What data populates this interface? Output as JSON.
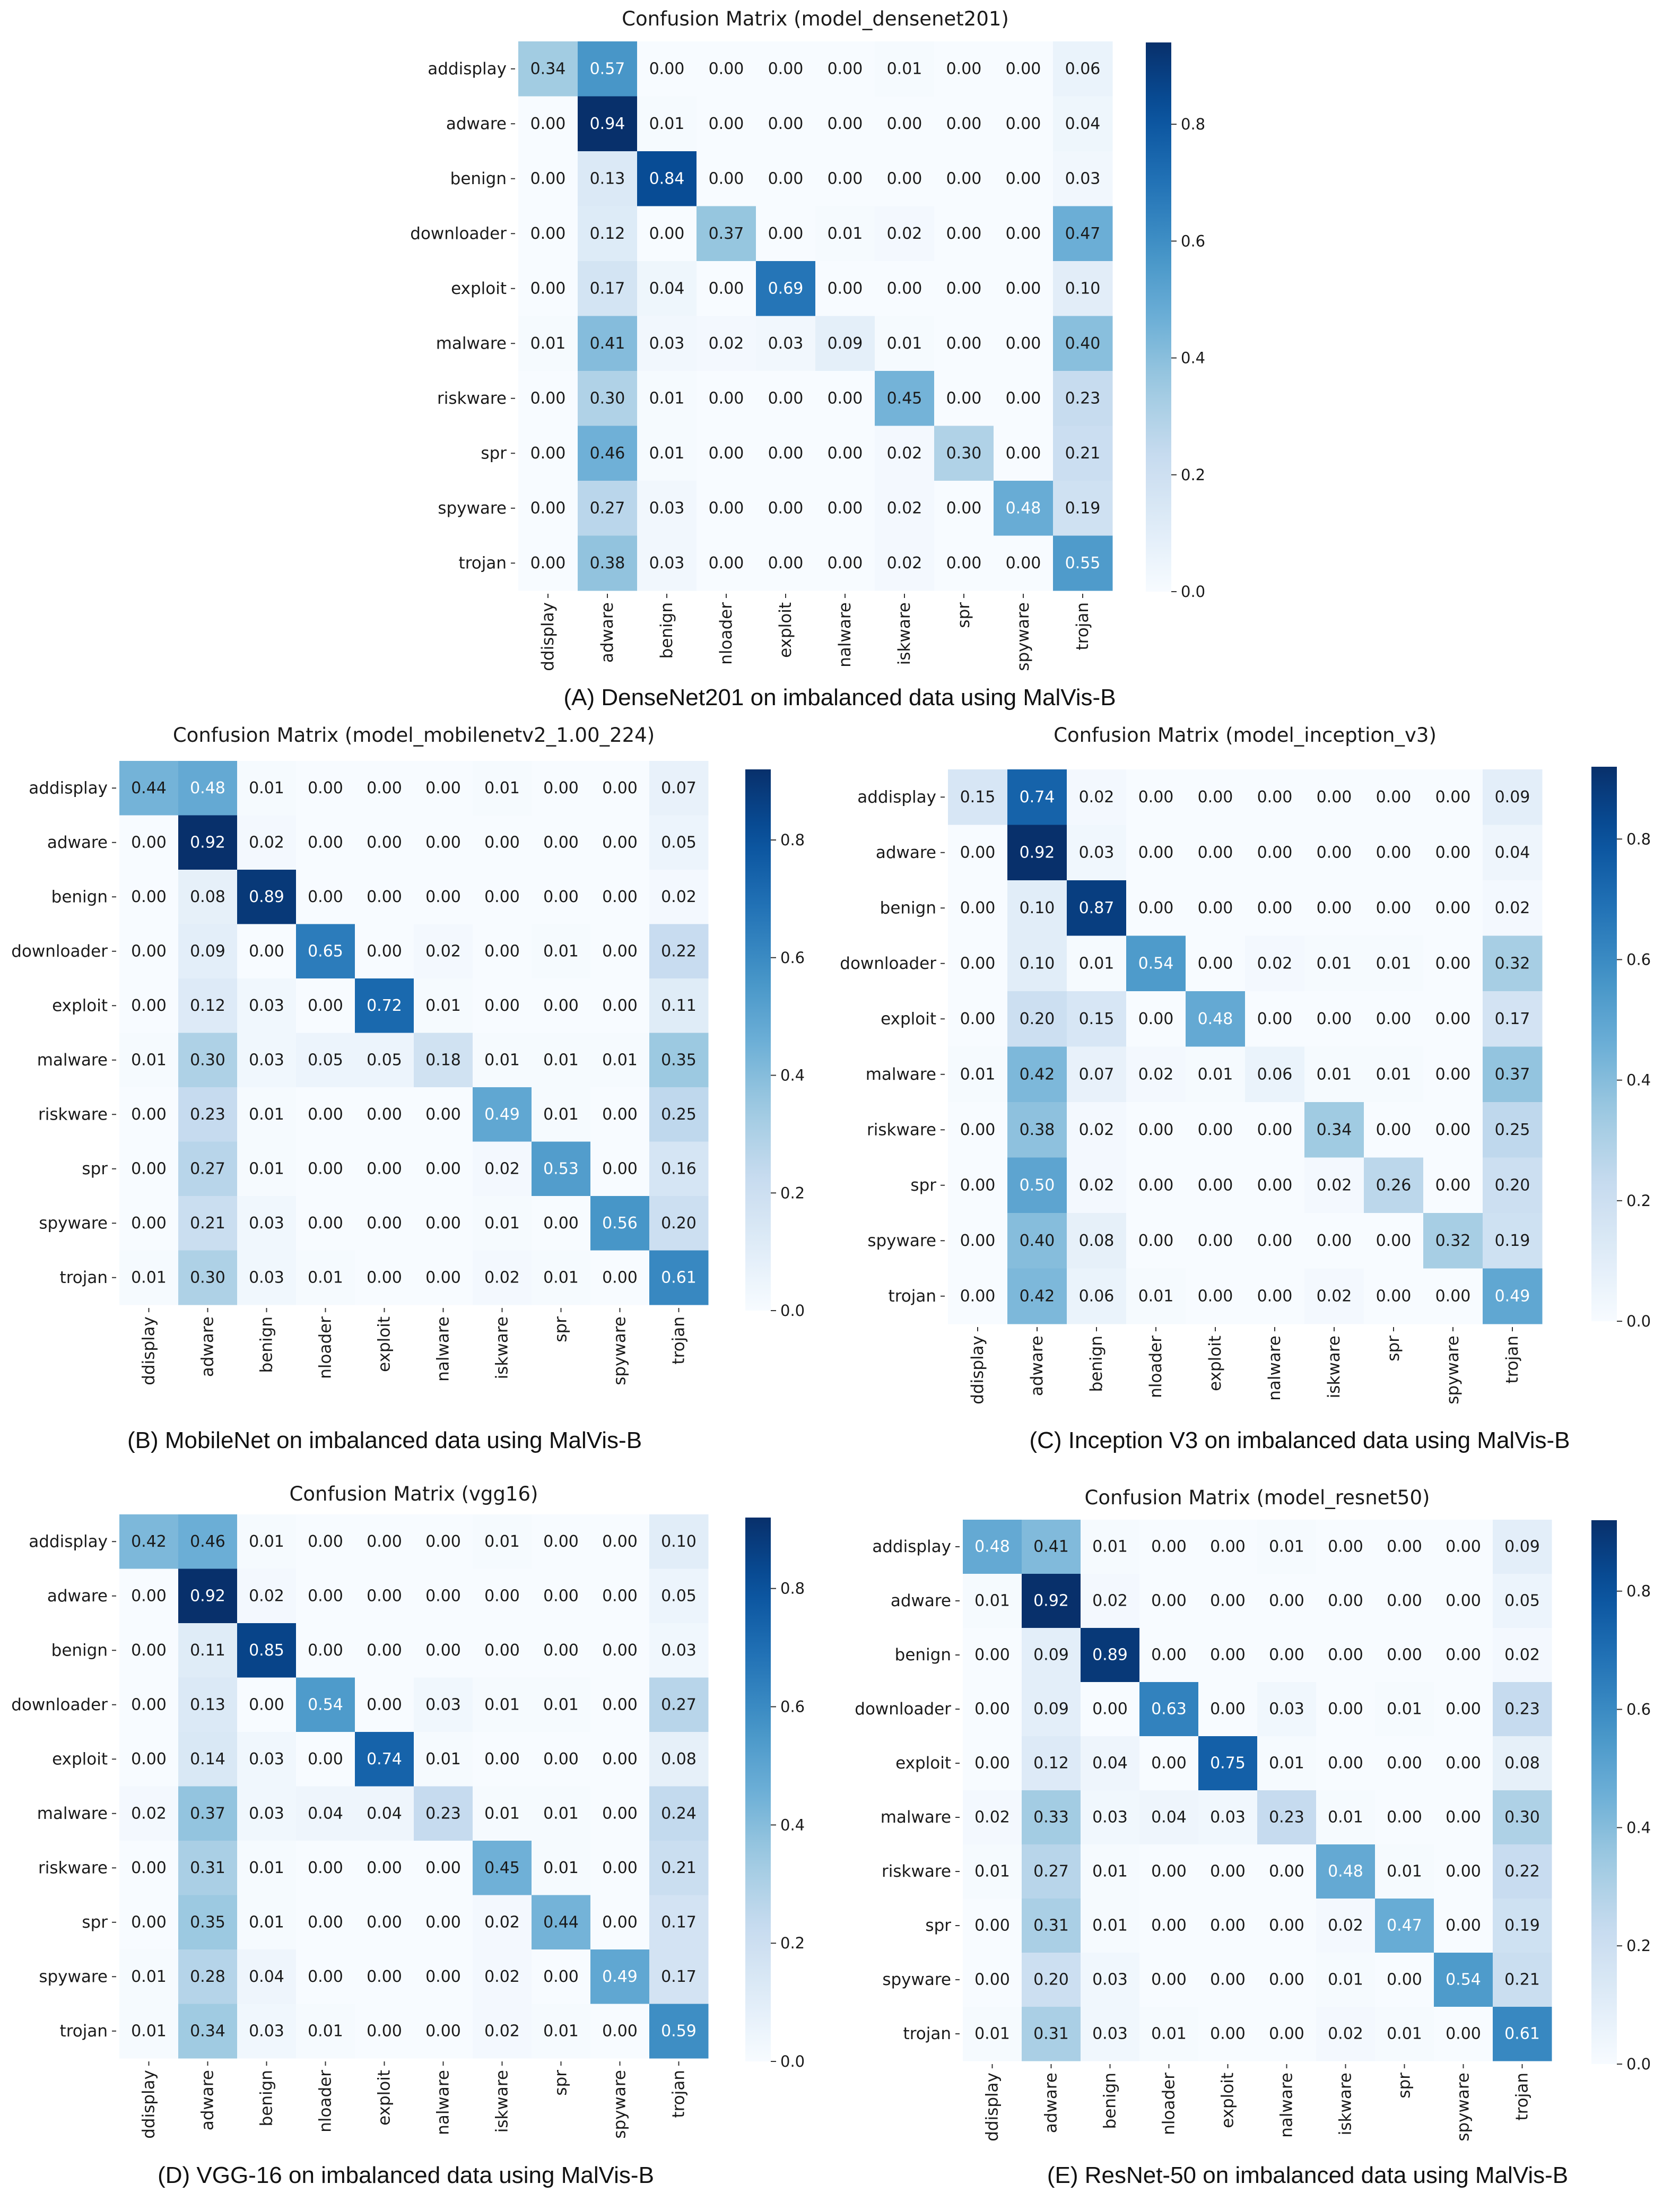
{
  "colorscale": {
    "low": "#f7fbff",
    "mid": "#6baed6",
    "high": "#08306b"
  },
  "chart_data": [
    {
      "type": "heatmap",
      "title": "Confusion Matrix (model_densenet201)",
      "caption": "(A) DenseNet201 on imbalanced data using MalVis-B",
      "rows": [
        "addisplay",
        "adware",
        "benign",
        "downloader",
        "exploit",
        "malware",
        "riskware",
        "spr",
        "spyware",
        "trojan"
      ],
      "cols": [
        "ddisplay",
        "adware",
        "benign",
        "nloader",
        "exploit",
        "nalware",
        "iskware",
        "spr",
        "spyware",
        "trojan"
      ],
      "vmin": 0,
      "vmax": 0.94,
      "colorbar_ticks": [
        "0.0",
        "0.2",
        "0.4",
        "0.6",
        "0.8"
      ],
      "values": [
        [
          0.34,
          0.57,
          0.0,
          0.0,
          0.0,
          0.0,
          0.01,
          0.0,
          0.0,
          0.06
        ],
        [
          0.0,
          0.94,
          0.01,
          0.0,
          0.0,
          0.0,
          0.0,
          0.0,
          0.0,
          0.04
        ],
        [
          0.0,
          0.13,
          0.84,
          0.0,
          0.0,
          0.0,
          0.0,
          0.0,
          0.0,
          0.03
        ],
        [
          0.0,
          0.12,
          0.0,
          0.37,
          0.0,
          0.01,
          0.02,
          0.0,
          0.0,
          0.47
        ],
        [
          0.0,
          0.17,
          0.04,
          0.0,
          0.69,
          0.0,
          0.0,
          0.0,
          0.0,
          0.1
        ],
        [
          0.01,
          0.41,
          0.03,
          0.02,
          0.03,
          0.09,
          0.01,
          0.0,
          0.0,
          0.4
        ],
        [
          0.0,
          0.3,
          0.01,
          0.0,
          0.0,
          0.0,
          0.45,
          0.0,
          0.0,
          0.23
        ],
        [
          0.0,
          0.46,
          0.01,
          0.0,
          0.0,
          0.0,
          0.02,
          0.3,
          0.0,
          0.21
        ],
        [
          0.0,
          0.27,
          0.03,
          0.0,
          0.0,
          0.0,
          0.02,
          0.0,
          0.48,
          0.19
        ],
        [
          0.0,
          0.38,
          0.03,
          0.0,
          0.0,
          0.0,
          0.02,
          0.0,
          0.0,
          0.55
        ]
      ]
    },
    {
      "type": "heatmap",
      "title": "Confusion Matrix (model_mobilenetv2_1.00_224)",
      "caption": "(B) MobileNet on imbalanced data using MalVis-B",
      "rows": [
        "addisplay",
        "adware",
        "benign",
        "downloader",
        "exploit",
        "malware",
        "riskware",
        "spr",
        "spyware",
        "trojan"
      ],
      "cols": [
        "ddisplay",
        "adware",
        "benign",
        "nloader",
        "exploit",
        "nalware",
        "iskware",
        "spr",
        "spyware",
        "trojan"
      ],
      "vmin": 0,
      "vmax": 0.92,
      "colorbar_ticks": [
        "0.0",
        "0.2",
        "0.4",
        "0.6",
        "0.8"
      ],
      "values": [
        [
          0.44,
          0.48,
          0.01,
          0.0,
          0.0,
          0.0,
          0.01,
          0.0,
          0.0,
          0.07
        ],
        [
          0.0,
          0.92,
          0.02,
          0.0,
          0.0,
          0.0,
          0.0,
          0.0,
          0.0,
          0.05
        ],
        [
          0.0,
          0.08,
          0.89,
          0.0,
          0.0,
          0.0,
          0.0,
          0.0,
          0.0,
          0.02
        ],
        [
          0.0,
          0.09,
          0.0,
          0.65,
          0.0,
          0.02,
          0.0,
          0.01,
          0.0,
          0.22
        ],
        [
          0.0,
          0.12,
          0.03,
          0.0,
          0.72,
          0.01,
          0.0,
          0.0,
          0.0,
          0.11
        ],
        [
          0.01,
          0.3,
          0.03,
          0.05,
          0.05,
          0.18,
          0.01,
          0.01,
          0.01,
          0.35
        ],
        [
          0.0,
          0.23,
          0.01,
          0.0,
          0.0,
          0.0,
          0.49,
          0.01,
          0.0,
          0.25
        ],
        [
          0.0,
          0.27,
          0.01,
          0.0,
          0.0,
          0.0,
          0.02,
          0.53,
          0.0,
          0.16
        ],
        [
          0.0,
          0.21,
          0.03,
          0.0,
          0.0,
          0.0,
          0.01,
          0.0,
          0.56,
          0.2
        ],
        [
          0.01,
          0.3,
          0.03,
          0.01,
          0.0,
          0.0,
          0.02,
          0.01,
          0.0,
          0.61
        ]
      ]
    },
    {
      "type": "heatmap",
      "title": "Confusion Matrix (model_inception_v3)",
      "caption": "(C) Inception V3  on imbalanced data using MalVis-B",
      "rows": [
        "addisplay",
        "adware",
        "benign",
        "downloader",
        "exploit",
        "malware",
        "riskware",
        "spr",
        "spyware",
        "trojan"
      ],
      "cols": [
        "ddisplay",
        "adware",
        "benign",
        "nloader",
        "exploit",
        "nalware",
        "iskware",
        "spr",
        "spyware",
        "trojan"
      ],
      "vmin": 0,
      "vmax": 0.92,
      "colorbar_ticks": [
        "0.0",
        "0.2",
        "0.4",
        "0.6",
        "0.8"
      ],
      "values": [
        [
          0.15,
          0.74,
          0.02,
          0.0,
          0.0,
          0.0,
          0.0,
          0.0,
          0.0,
          0.09
        ],
        [
          0.0,
          0.92,
          0.03,
          0.0,
          0.0,
          0.0,
          0.0,
          0.0,
          0.0,
          0.04
        ],
        [
          0.0,
          0.1,
          0.87,
          0.0,
          0.0,
          0.0,
          0.0,
          0.0,
          0.0,
          0.02
        ],
        [
          0.0,
          0.1,
          0.01,
          0.54,
          0.0,
          0.02,
          0.01,
          0.01,
          0.0,
          0.32
        ],
        [
          0.0,
          0.2,
          0.15,
          0.0,
          0.48,
          0.0,
          0.0,
          0.0,
          0.0,
          0.17
        ],
        [
          0.01,
          0.42,
          0.07,
          0.02,
          0.01,
          0.06,
          0.01,
          0.01,
          0.0,
          0.37
        ],
        [
          0.0,
          0.38,
          0.02,
          0.0,
          0.0,
          0.0,
          0.34,
          0.0,
          0.0,
          0.25
        ],
        [
          0.0,
          0.5,
          0.02,
          0.0,
          0.0,
          0.0,
          0.02,
          0.26,
          0.0,
          0.2
        ],
        [
          0.0,
          0.4,
          0.08,
          0.0,
          0.0,
          0.0,
          0.0,
          0.0,
          0.32,
          0.19
        ],
        [
          0.0,
          0.42,
          0.06,
          0.01,
          0.0,
          0.0,
          0.02,
          0.0,
          0.0,
          0.49
        ]
      ]
    },
    {
      "type": "heatmap",
      "title": "Confusion Matrix (vgg16)",
      "caption": "(D) VGG-16 on imbalanced data using MalVis-B",
      "rows": [
        "addisplay",
        "adware",
        "benign",
        "downloader",
        "exploit",
        "malware",
        "riskware",
        "spr",
        "spyware",
        "trojan"
      ],
      "cols": [
        "ddisplay",
        "adware",
        "benign",
        "nloader",
        "exploit",
        "nalware",
        "iskware",
        "spr",
        "spyware",
        "trojan"
      ],
      "vmin": 0,
      "vmax": 0.92,
      "colorbar_ticks": [
        "0.0",
        "0.2",
        "0.4",
        "0.6",
        "0.8"
      ],
      "values": [
        [
          0.42,
          0.46,
          0.01,
          0.0,
          0.0,
          0.0,
          0.01,
          0.0,
          0.0,
          0.1
        ],
        [
          0.0,
          0.92,
          0.02,
          0.0,
          0.0,
          0.0,
          0.0,
          0.0,
          0.0,
          0.05
        ],
        [
          0.0,
          0.11,
          0.85,
          0.0,
          0.0,
          0.0,
          0.0,
          0.0,
          0.0,
          0.03
        ],
        [
          0.0,
          0.13,
          0.0,
          0.54,
          0.0,
          0.03,
          0.01,
          0.01,
          0.0,
          0.27
        ],
        [
          0.0,
          0.14,
          0.03,
          0.0,
          0.74,
          0.01,
          0.0,
          0.0,
          0.0,
          0.08
        ],
        [
          0.02,
          0.37,
          0.03,
          0.04,
          0.04,
          0.23,
          0.01,
          0.01,
          0.0,
          0.24
        ],
        [
          0.0,
          0.31,
          0.01,
          0.0,
          0.0,
          0.0,
          0.45,
          0.01,
          0.0,
          0.21
        ],
        [
          0.0,
          0.35,
          0.01,
          0.0,
          0.0,
          0.0,
          0.02,
          0.44,
          0.0,
          0.17
        ],
        [
          0.01,
          0.28,
          0.04,
          0.0,
          0.0,
          0.0,
          0.02,
          0.0,
          0.49,
          0.17
        ],
        [
          0.01,
          0.34,
          0.03,
          0.01,
          0.0,
          0.0,
          0.02,
          0.01,
          0.0,
          0.59
        ]
      ]
    },
    {
      "type": "heatmap",
      "title": "Confusion Matrix (model_resnet50)",
      "caption": "(E) ResNet-50 on imbalanced data using MalVis-B",
      "rows": [
        "addisplay",
        "adware",
        "benign",
        "downloader",
        "exploit",
        "malware",
        "riskware",
        "spr",
        "spyware",
        "trojan"
      ],
      "cols": [
        "ddisplay",
        "adware",
        "benign",
        "nloader",
        "exploit",
        "nalware",
        "iskware",
        "spr",
        "spyware",
        "trojan"
      ],
      "vmin": 0,
      "vmax": 0.92,
      "colorbar_ticks": [
        "0.0",
        "0.2",
        "0.4",
        "0.6",
        "0.8"
      ],
      "values": [
        [
          0.48,
          0.41,
          0.01,
          0.0,
          0.0,
          0.01,
          0.0,
          0.0,
          0.0,
          0.09
        ],
        [
          0.01,
          0.92,
          0.02,
          0.0,
          0.0,
          0.0,
          0.0,
          0.0,
          0.0,
          0.05
        ],
        [
          0.0,
          0.09,
          0.89,
          0.0,
          0.0,
          0.0,
          0.0,
          0.0,
          0.0,
          0.02
        ],
        [
          0.0,
          0.09,
          0.0,
          0.63,
          0.0,
          0.03,
          0.0,
          0.01,
          0.0,
          0.23
        ],
        [
          0.0,
          0.12,
          0.04,
          0.0,
          0.75,
          0.01,
          0.0,
          0.0,
          0.0,
          0.08
        ],
        [
          0.02,
          0.33,
          0.03,
          0.04,
          0.03,
          0.23,
          0.01,
          0.0,
          0.0,
          0.3
        ],
        [
          0.01,
          0.27,
          0.01,
          0.0,
          0.0,
          0.0,
          0.48,
          0.01,
          0.0,
          0.22
        ],
        [
          0.0,
          0.31,
          0.01,
          0.0,
          0.0,
          0.0,
          0.02,
          0.47,
          0.0,
          0.19
        ],
        [
          0.0,
          0.2,
          0.03,
          0.0,
          0.0,
          0.0,
          0.01,
          0.0,
          0.54,
          0.21
        ],
        [
          0.01,
          0.31,
          0.03,
          0.01,
          0.0,
          0.0,
          0.02,
          0.01,
          0.0,
          0.61
        ]
      ]
    }
  ]
}
